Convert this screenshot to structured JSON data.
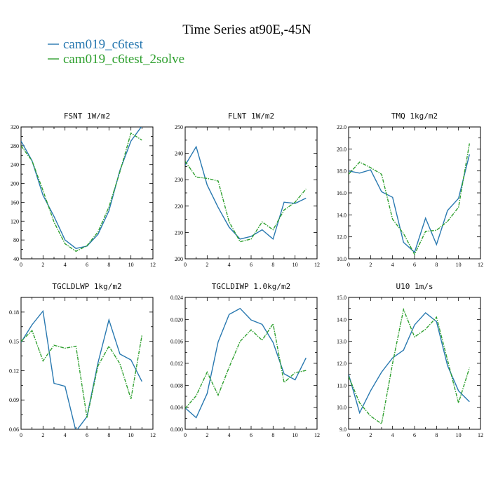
{
  "page_title": "Time Series at90E,-45N",
  "colors": {
    "series_1": "#2878b0",
    "series_2": "#2fa02f"
  },
  "legend": [
    {
      "name": "cam019_c6test",
      "color": "#2878b0",
      "dashed": false
    },
    {
      "name": "cam019_c6test_2solve",
      "color": "#2fa02f",
      "dashed": true
    }
  ],
  "chart_data": [
    {
      "type": "line",
      "title": "FSNT  1W/m2",
      "x": [
        0,
        1,
        2,
        3,
        4,
        5,
        6,
        7,
        8,
        9,
        10,
        11
      ],
      "xlim": [
        0,
        12
      ],
      "xticks": [
        "0",
        "2",
        "4",
        "6",
        "8",
        "10",
        "12"
      ],
      "ylim": [
        40,
        320
      ],
      "yticks": [
        "40",
        "80",
        "120",
        "160",
        "200",
        "240",
        "280",
        "320"
      ],
      "series": [
        {
          "name": "cam019_c6test",
          "values": [
            290,
            248,
            175,
            130,
            80,
            62,
            67,
            92,
            142,
            228,
            290,
            322
          ]
        },
        {
          "name": "cam019_c6test_2solve",
          "values": [
            280,
            248,
            185,
            118,
            72,
            56,
            68,
            97,
            150,
            225,
            307,
            292
          ]
        }
      ]
    },
    {
      "type": "line",
      "title": "FLNT  1W/m2",
      "x": [
        0,
        1,
        2,
        3,
        4,
        5,
        6,
        7,
        8,
        9,
        10,
        11
      ],
      "xlim": [
        0,
        12
      ],
      "xticks": [
        "0",
        "2",
        "4",
        "6",
        "8",
        "10",
        "12"
      ],
      "ylim": [
        200,
        250
      ],
      "yticks": [
        "200",
        "210",
        "220",
        "230",
        "240",
        "250"
      ],
      "series": [
        {
          "name": "cam019_c6test",
          "values": [
            235.5,
            242.5,
            228,
            219.5,
            212,
            207.5,
            208.5,
            211,
            207.5,
            221.5,
            221,
            223
          ]
        },
        {
          "name": "cam019_c6test_2solve",
          "values": [
            237,
            231,
            230.5,
            229.5,
            214,
            206.5,
            207.5,
            214,
            211,
            218.5,
            221.5,
            226.5
          ]
        }
      ]
    },
    {
      "type": "line",
      "title": "TMQ  1kg/m2",
      "x": [
        0,
        1,
        2,
        3,
        4,
        5,
        6,
        7,
        8,
        9,
        10,
        11
      ],
      "xlim": [
        0,
        12
      ],
      "xticks": [
        "0",
        "2",
        "4",
        "6",
        "8",
        "10",
        "12"
      ],
      "ylim": [
        10.0,
        22.0
      ],
      "yticks": [
        "10.0",
        "12.0",
        "14.0",
        "16.0",
        "18.0",
        "20.0",
        "22.0"
      ],
      "series": [
        {
          "name": "cam019_c6test",
          "values": [
            18.0,
            17.8,
            18.1,
            16.1,
            15.6,
            11.5,
            10.6,
            13.7,
            11.3,
            14.4,
            15.5,
            19.5
          ]
        },
        {
          "name": "cam019_c6test_2solve",
          "values": [
            17.7,
            18.8,
            18.3,
            17.7,
            13.6,
            12.3,
            10.4,
            12.5,
            12.6,
            13.4,
            14.7,
            20.5
          ]
        }
      ]
    },
    {
      "type": "line",
      "title": "TGCLDLWP  1kg/m2",
      "x": [
        0,
        1,
        2,
        3,
        4,
        5,
        6,
        7,
        8,
        9,
        10,
        11
      ],
      "xlim": [
        0,
        12
      ],
      "xticks": [
        "0",
        "2",
        "4",
        "6",
        "8",
        "10",
        "12"
      ],
      "ylim": [
        0.06,
        0.195
      ],
      "yticks": [
        "0.06",
        "0.09",
        "0.12",
        "0.15",
        "0.18"
      ],
      "series": [
        {
          "name": "cam019_c6test",
          "values": [
            0.149,
            0.167,
            0.181,
            0.107,
            0.104,
            0.058,
            0.073,
            0.128,
            0.172,
            0.137,
            0.131,
            0.109
          ]
        },
        {
          "name": "cam019_c6test_2solve",
          "values": [
            0.15,
            0.161,
            0.13,
            0.146,
            0.143,
            0.145,
            0.072,
            0.125,
            0.145,
            0.127,
            0.091,
            0.156
          ]
        }
      ]
    },
    {
      "type": "line",
      "title": "TGCLDIWP  1.0kg/m2",
      "x": [
        0,
        1,
        2,
        3,
        4,
        5,
        6,
        7,
        8,
        9,
        10,
        11
      ],
      "xlim": [
        0,
        12
      ],
      "xticks": [
        "0",
        "2",
        "4",
        "6",
        "8",
        "10",
        "12"
      ],
      "ylim": [
        0.0,
        0.024
      ],
      "yticks": [
        "0.000",
        "0.004",
        "0.008",
        "0.012",
        "0.016",
        "0.020",
        "0.024"
      ],
      "series": [
        {
          "name": "cam019_c6test",
          "values": [
            0.0039,
            0.0021,
            0.0065,
            0.0159,
            0.0209,
            0.022,
            0.0199,
            0.0191,
            0.0158,
            0.0101,
            0.009,
            0.013
          ]
        },
        {
          "name": "cam019_c6test_2solve",
          "values": [
            0.0038,
            0.0061,
            0.0104,
            0.0062,
            0.0113,
            0.016,
            0.0181,
            0.0162,
            0.0192,
            0.0085,
            0.0103,
            0.0107
          ]
        }
      ]
    },
    {
      "type": "line",
      "title": "U10  1m/s",
      "x": [
        0,
        1,
        2,
        3,
        4,
        5,
        6,
        7,
        8,
        9,
        10,
        11
      ],
      "xlim": [
        0,
        12
      ],
      "xticks": [
        "0",
        "2",
        "4",
        "6",
        "8",
        "10",
        "12"
      ],
      "ylim": [
        9.0,
        15.0
      ],
      "yticks": [
        "9.0",
        "10.0",
        "11.0",
        "12.0",
        "13.0",
        "14.0",
        "15.0"
      ],
      "series": [
        {
          "name": "cam019_c6test",
          "values": [
            11.5,
            9.75,
            10.75,
            11.6,
            12.25,
            12.6,
            13.75,
            14.3,
            13.9,
            11.9,
            10.75,
            10.25
          ]
        },
        {
          "name": "cam019_c6test_2solve",
          "values": [
            11.4,
            10.2,
            9.6,
            9.25,
            12.0,
            14.45,
            13.2,
            13.55,
            14.1,
            12.15,
            10.2,
            11.8
          ]
        }
      ]
    }
  ]
}
